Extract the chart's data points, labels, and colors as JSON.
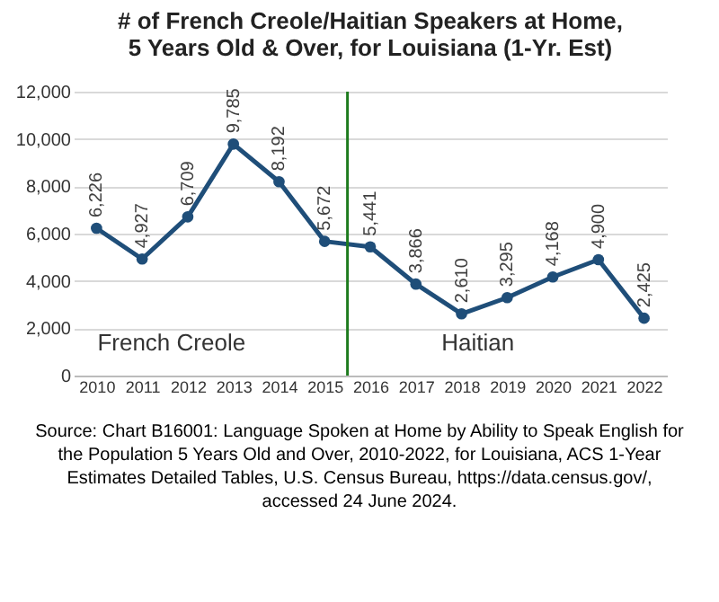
{
  "chart_data": {
    "type": "line",
    "title": [
      "# of French Creole/Haitian Speakers at Home,",
      "5 Years Old & Over, for Louisiana (1-Yr. Est)"
    ],
    "x": [
      2010,
      2011,
      2012,
      2013,
      2014,
      2015,
      2016,
      2017,
      2018,
      2019,
      2020,
      2021,
      2022
    ],
    "series": [
      {
        "color": "#1f4e79",
        "values": [
          6226,
          4927,
          6709,
          9785,
          8192,
          5672,
          5441,
          3866,
          2610,
          3295,
          4168,
          4900,
          2425
        ]
      }
    ],
    "xlim": [
      2009.5,
      2022.5
    ],
    "xticks": [
      2010,
      2011,
      2012,
      2013,
      2014,
      2015,
      2016,
      2017,
      2018,
      2019,
      2020,
      2021,
      2022
    ],
    "ylim": [
      0,
      12000
    ],
    "yticks": [
      0,
      {
        "value": 2000,
        "label": "2,000"
      },
      {
        "value": 4000,
        "label": "4,000"
      },
      {
        "value": 6000,
        "label": "6,000"
      },
      {
        "value": 8000,
        "label": "8,000"
      },
      {
        "value": 10000,
        "label": "10,000"
      },
      {
        "value": 12000,
        "label": "12,000"
      }
    ],
    "grid": "y",
    "marker": "circle",
    "line_style": "solid",
    "value_labels": [
      "6,226",
      "4,927",
      "6,709",
      "9,785",
      "8,192",
      "5,672",
      "5,441",
      "3,866",
      "2,610",
      "3,295",
      "4,168",
      "4,900",
      "2,425"
    ],
    "ref_lines": [
      {
        "axis": "x",
        "value": 2015.5,
        "color": "#1e7b1e"
      }
    ],
    "annotations": [
      "French Creole",
      "Haitian",
      "Source: Chart B16001: Language Spoken at Home by Ability to Speak English for the Population 5 Years Old and Over, 2010-2022, for Louisiana, ACS 1-Year Estimates Detailed Tables, U.S. Census Bureau, https://data.census.gov/, accessed 24 June 2024."
    ]
  }
}
